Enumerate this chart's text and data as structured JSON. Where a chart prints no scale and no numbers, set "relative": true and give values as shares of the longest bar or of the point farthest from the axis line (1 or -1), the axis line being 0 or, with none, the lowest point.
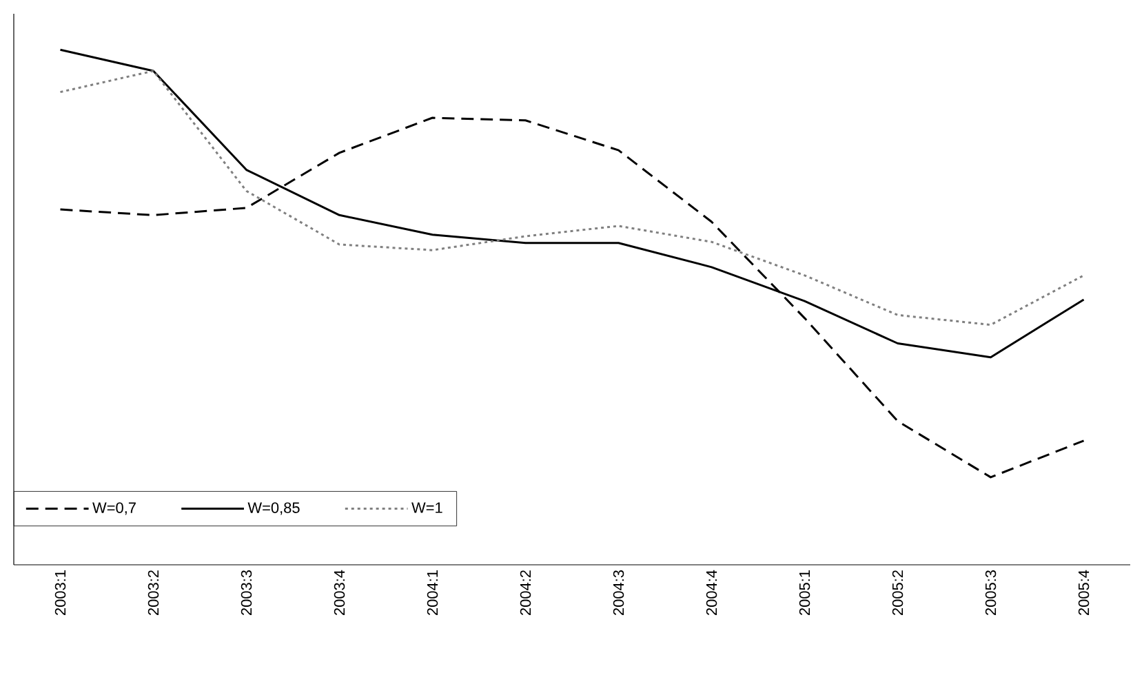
{
  "chart_data": {
    "type": "line",
    "relative": true,
    "legend": "bottom left",
    "grid": false,
    "marker": "none",
    "categories": [
      "2003:1",
      "2003:2",
      "2003:3",
      "2003:4",
      "2004:1",
      "2004:2",
      "2004:3",
      "2004:4",
      "2005:1",
      "2005:2",
      "2005:3",
      "2005:4"
    ],
    "series": [
      {
        "name": "W=0,7",
        "color": "#000000",
        "line_style": "dashed",
        "values": [
          0.69,
          0.679,
          0.693,
          0.8,
          0.868,
          0.863,
          0.805,
          0.666,
          0.479,
          0.279,
          0.17,
          0.241
        ]
      },
      {
        "name": "W=0,85",
        "color": "#000000",
        "line_style": "solid",
        "values": [
          1.0,
          0.959,
          0.767,
          0.679,
          0.641,
          0.625,
          0.625,
          0.578,
          0.512,
          0.43,
          0.403,
          0.515
        ]
      },
      {
        "name": "W=1",
        "color": "#808080",
        "line_style": "dotted",
        "values": [
          0.918,
          0.959,
          0.726,
          0.622,
          0.611,
          0.638,
          0.658,
          0.627,
          0.562,
          0.485,
          0.466,
          0.562
        ]
      }
    ]
  }
}
